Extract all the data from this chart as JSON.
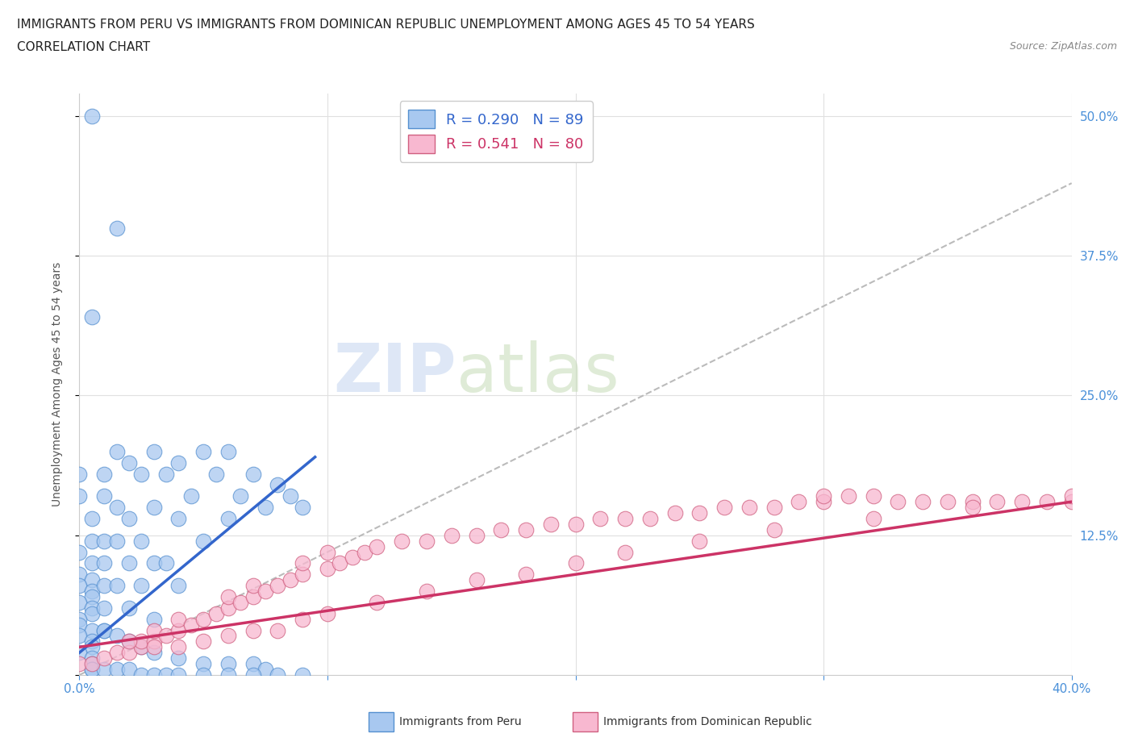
{
  "title_line1": "IMMIGRANTS FROM PERU VS IMMIGRANTS FROM DOMINICAN REPUBLIC UNEMPLOYMENT AMONG AGES 45 TO 54 YEARS",
  "title_line2": "CORRELATION CHART",
  "source_text": "Source: ZipAtlas.com",
  "ylabel": "Unemployment Among Ages 45 to 54 years",
  "x_min": 0.0,
  "x_max": 0.4,
  "y_min": 0.0,
  "y_max": 0.52,
  "x_ticks": [
    0.0,
    0.1,
    0.2,
    0.3,
    0.4
  ],
  "x_tick_labels": [
    "0.0%",
    "",
    "",
    "",
    "40.0%"
  ],
  "y_ticks": [
    0.0,
    0.125,
    0.25,
    0.375,
    0.5
  ],
  "y_tick_labels": [
    "",
    "12.5%",
    "25.0%",
    "37.5%",
    "50.0%"
  ],
  "peru_color": "#a8c8f0",
  "peru_edge_color": "#5590d0",
  "dr_color": "#f8b8d0",
  "dr_edge_color": "#d06080",
  "peru_line_color": "#3366cc",
  "dr_line_color": "#cc3366",
  "trend_line_color": "#aaaaaa",
  "legend_peru_label": "R = 0.290   N = 89",
  "legend_dr_label": "R = 0.541   N = 80",
  "bottom_legend_peru": "Immigrants from Peru",
  "bottom_legend_dr": "Immigrants from Dominican Republic",
  "watermark_zip": "ZIP",
  "watermark_atlas": "atlas",
  "peru_scatter_x": [
    0.005,
    0.015,
    0.005,
    0.0,
    0.0,
    0.005,
    0.005,
    0.0,
    0.005,
    0.0,
    0.005,
    0.0,
    0.005,
    0.005,
    0.0,
    0.005,
    0.005,
    0.0,
    0.0,
    0.005,
    0.0,
    0.005,
    0.005,
    0.0,
    0.005,
    0.005,
    0.005,
    0.01,
    0.01,
    0.01,
    0.01,
    0.01,
    0.01,
    0.01,
    0.015,
    0.015,
    0.015,
    0.015,
    0.02,
    0.02,
    0.02,
    0.02,
    0.025,
    0.025,
    0.025,
    0.03,
    0.03,
    0.03,
    0.03,
    0.035,
    0.035,
    0.04,
    0.04,
    0.04,
    0.045,
    0.05,
    0.05,
    0.055,
    0.06,
    0.06,
    0.065,
    0.07,
    0.075,
    0.08,
    0.085,
    0.09,
    0.01,
    0.015,
    0.02,
    0.025,
    0.03,
    0.04,
    0.05,
    0.06,
    0.07,
    0.075,
    0.005,
    0.01,
    0.015,
    0.02,
    0.025,
    0.03,
    0.035,
    0.04,
    0.05,
    0.06,
    0.07,
    0.08,
    0.09
  ],
  "peru_scatter_y": [
    0.5,
    0.4,
    0.32,
    0.18,
    0.16,
    0.14,
    0.12,
    0.11,
    0.1,
    0.09,
    0.085,
    0.08,
    0.075,
    0.07,
    0.065,
    0.06,
    0.055,
    0.05,
    0.045,
    0.04,
    0.035,
    0.03,
    0.025,
    0.02,
    0.015,
    0.01,
    0.005,
    0.18,
    0.16,
    0.12,
    0.1,
    0.08,
    0.06,
    0.04,
    0.2,
    0.15,
    0.12,
    0.08,
    0.19,
    0.14,
    0.1,
    0.06,
    0.18,
    0.12,
    0.08,
    0.2,
    0.15,
    0.1,
    0.05,
    0.18,
    0.1,
    0.19,
    0.14,
    0.08,
    0.16,
    0.2,
    0.12,
    0.18,
    0.2,
    0.14,
    0.16,
    0.18,
    0.15,
    0.17,
    0.16,
    0.15,
    0.04,
    0.035,
    0.03,
    0.025,
    0.02,
    0.015,
    0.01,
    0.01,
    0.01,
    0.005,
    0.005,
    0.005,
    0.005,
    0.005,
    0.0,
    0.0,
    0.0,
    0.0,
    0.0,
    0.0,
    0.0,
    0.0,
    0.0
  ],
  "dr_scatter_x": [
    0.0,
    0.005,
    0.01,
    0.015,
    0.02,
    0.025,
    0.025,
    0.03,
    0.03,
    0.035,
    0.04,
    0.04,
    0.045,
    0.05,
    0.055,
    0.06,
    0.06,
    0.065,
    0.07,
    0.07,
    0.075,
    0.08,
    0.085,
    0.09,
    0.09,
    0.1,
    0.1,
    0.105,
    0.11,
    0.115,
    0.12,
    0.13,
    0.14,
    0.15,
    0.16,
    0.17,
    0.18,
    0.19,
    0.2,
    0.21,
    0.22,
    0.23,
    0.24,
    0.25,
    0.26,
    0.27,
    0.28,
    0.29,
    0.3,
    0.3,
    0.31,
    0.32,
    0.33,
    0.34,
    0.35,
    0.36,
    0.37,
    0.38,
    0.39,
    0.4,
    0.02,
    0.03,
    0.04,
    0.05,
    0.06,
    0.07,
    0.08,
    0.09,
    0.1,
    0.12,
    0.14,
    0.16,
    0.18,
    0.2,
    0.22,
    0.25,
    0.28,
    0.32,
    0.36,
    0.4
  ],
  "dr_scatter_y": [
    0.01,
    0.01,
    0.015,
    0.02,
    0.02,
    0.025,
    0.03,
    0.03,
    0.04,
    0.035,
    0.04,
    0.05,
    0.045,
    0.05,
    0.055,
    0.06,
    0.07,
    0.065,
    0.07,
    0.08,
    0.075,
    0.08,
    0.085,
    0.09,
    0.1,
    0.095,
    0.11,
    0.1,
    0.105,
    0.11,
    0.115,
    0.12,
    0.12,
    0.125,
    0.125,
    0.13,
    0.13,
    0.135,
    0.135,
    0.14,
    0.14,
    0.14,
    0.145,
    0.145,
    0.15,
    0.15,
    0.15,
    0.155,
    0.155,
    0.16,
    0.16,
    0.16,
    0.155,
    0.155,
    0.155,
    0.155,
    0.155,
    0.155,
    0.155,
    0.155,
    0.03,
    0.025,
    0.025,
    0.03,
    0.035,
    0.04,
    0.04,
    0.05,
    0.055,
    0.065,
    0.075,
    0.085,
    0.09,
    0.1,
    0.11,
    0.12,
    0.13,
    0.14,
    0.15,
    0.16
  ],
  "background_color": "#ffffff",
  "grid_color": "#e0e0e0",
  "title_fontsize": 11,
  "label_fontsize": 10,
  "tick_fontsize": 11,
  "peru_line_x": [
    0.0,
    0.095
  ],
  "peru_line_y": [
    0.02,
    0.195
  ],
  "dr_line_x": [
    0.0,
    0.4
  ],
  "dr_line_y": [
    0.025,
    0.155
  ],
  "gray_line_x": [
    0.0,
    0.4
  ],
  "gray_line_y": [
    0.0,
    0.44
  ]
}
